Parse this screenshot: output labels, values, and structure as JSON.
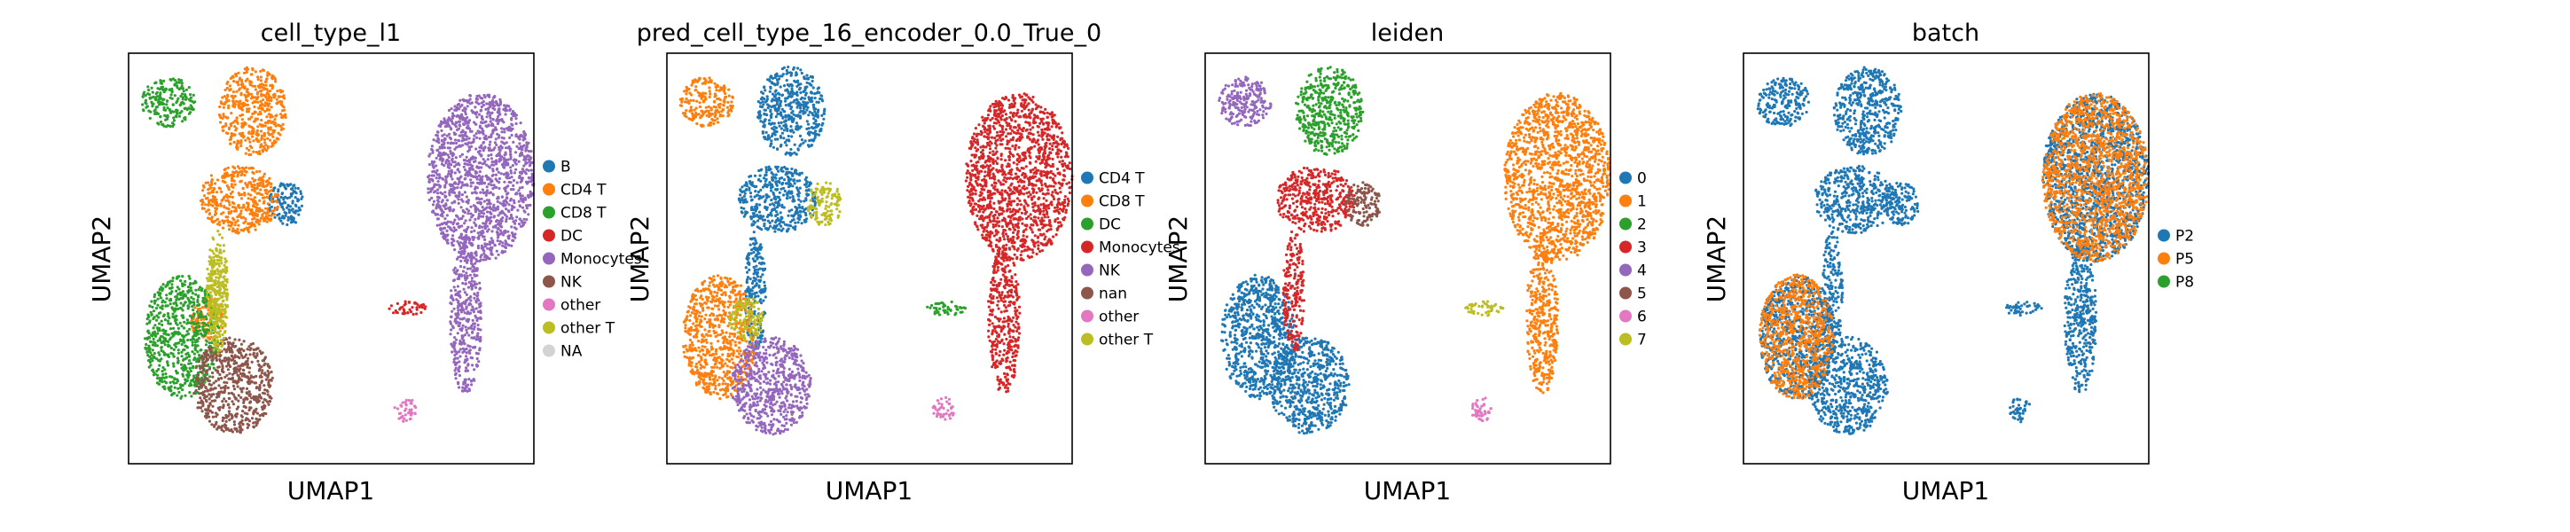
{
  "figure": {
    "xlabel": "UMAP1",
    "ylabel": "UMAP2"
  },
  "chart_data": [
    {
      "type": "scatter",
      "title": "cell_type_l1",
      "xlabel": "UMAP1",
      "ylabel": "UMAP2",
      "legend": "right",
      "grid": false,
      "series": [
        {
          "name": "B",
          "color": "#1f77b4",
          "regions": [
            "r_right_blob"
          ]
        },
        {
          "name": "CD4 T",
          "color": "#ff7f0e",
          "regions": [
            "r_top_right",
            "r_mid_left",
            "r_mid_tail"
          ]
        },
        {
          "name": "CD8 T",
          "color": "#2ca02c",
          "regions": [
            "r_top_left",
            "r_lower_left"
          ]
        },
        {
          "name": "DC",
          "color": "#d62728",
          "regions": [
            "r_far_tail"
          ]
        },
        {
          "name": "Monocytes",
          "color": "#9467bd",
          "regions": [
            "r_far_blob",
            "r_far_stem"
          ]
        },
        {
          "name": "NK",
          "color": "#8c564b",
          "regions": [
            "r_bottom_big"
          ]
        },
        {
          "name": "other",
          "color": "#e377c2",
          "regions": [
            "r_far_small"
          ]
        },
        {
          "name": "other T",
          "color": "#bcbd22",
          "regions": [
            "r_center_stem",
            "r_mid_right"
          ]
        },
        {
          "name": "NA",
          "color": "#d3d3d3",
          "regions": []
        }
      ]
    },
    {
      "type": "scatter",
      "title": "pred_cell_type_16_encoder_0.0_True_0",
      "xlabel": "UMAP1",
      "ylabel": "UMAP2",
      "legend": "right",
      "grid": false,
      "series": [
        {
          "name": "CD4 T",
          "color": "#1f77b4",
          "regions": [
            "r_top_right",
            "r_mid_left",
            "r_center_stem"
          ]
        },
        {
          "name": "CD8 T",
          "color": "#ff7f0e",
          "regions": [
            "r_top_left",
            "r_lower_left"
          ]
        },
        {
          "name": "DC",
          "color": "#2ca02c",
          "regions": [
            "r_far_tail"
          ]
        },
        {
          "name": "Monocytes",
          "color": "#d62728",
          "regions": [
            "r_far_blob",
            "r_far_stem"
          ]
        },
        {
          "name": "NK",
          "color": "#9467bd",
          "regions": [
            "r_bottom_big"
          ]
        },
        {
          "name": "nan",
          "color": "#8c564b",
          "regions": []
        },
        {
          "name": "other",
          "color": "#e377c2",
          "regions": [
            "r_far_small"
          ]
        },
        {
          "name": "other T",
          "color": "#bcbd22",
          "regions": [
            "r_right_blob",
            "r_mid_tail"
          ]
        }
      ]
    },
    {
      "type": "scatter",
      "title": "leiden",
      "xlabel": "UMAP1",
      "ylabel": "UMAP2",
      "legend": "right",
      "grid": false,
      "series": [
        {
          "name": "0",
          "color": "#1f77b4",
          "regions": [
            "r_lower_left",
            "r_bottom_big"
          ]
        },
        {
          "name": "1",
          "color": "#ff7f0e",
          "regions": [
            "r_far_blob",
            "r_far_stem"
          ]
        },
        {
          "name": "2",
          "color": "#2ca02c",
          "regions": [
            "r_top_right"
          ]
        },
        {
          "name": "3",
          "color": "#d62728",
          "regions": [
            "r_mid_left",
            "r_center_stem"
          ]
        },
        {
          "name": "4",
          "color": "#9467bd",
          "regions": [
            "r_top_left"
          ]
        },
        {
          "name": "5",
          "color": "#8c564b",
          "regions": [
            "r_right_blob"
          ]
        },
        {
          "name": "6",
          "color": "#e377c2",
          "regions": [
            "r_far_small"
          ]
        },
        {
          "name": "7",
          "color": "#bcbd22",
          "regions": [
            "r_far_tail"
          ]
        }
      ]
    },
    {
      "type": "scatter",
      "title": "batch",
      "xlabel": "UMAP1",
      "ylabel": "UMAP2",
      "legend": "right",
      "grid": false,
      "series": [
        {
          "name": "P2",
          "color": "#1f77b4",
          "regions": [
            "r_top_left",
            "r_top_right",
            "r_mid_left",
            "r_right_blob",
            "r_center_stem",
            "r_lower_left",
            "r_bottom_big",
            "r_far_blob",
            "r_far_stem",
            "r_far_small",
            "r_far_tail"
          ]
        },
        {
          "name": "P5",
          "color": "#ff7f0e",
          "regions": [
            "r_lower_left",
            "r_far_blob"
          ]
        },
        {
          "name": "P8",
          "color": "#2ca02c",
          "regions": []
        }
      ]
    }
  ]
}
